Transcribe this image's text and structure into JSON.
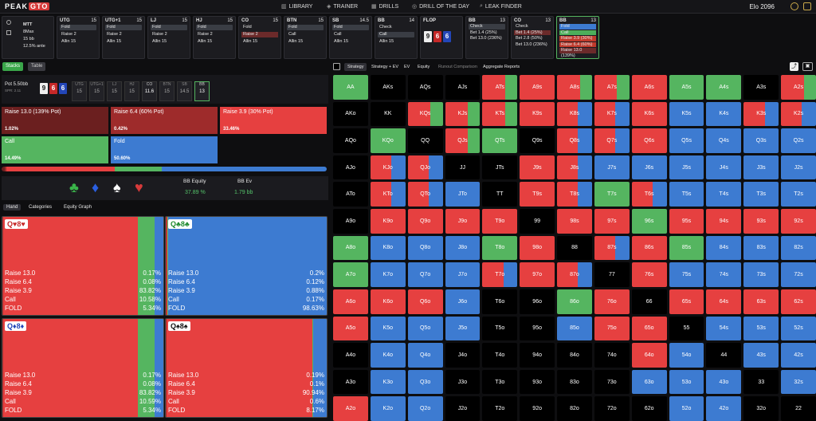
{
  "app": {
    "logo_a": "PEAK",
    "logo_b": "GTO",
    "elo": "Elo 2096"
  },
  "nav": [
    {
      "icon": "▥",
      "label": "LIBRARY"
    },
    {
      "icon": "◈",
      "label": "TRAINER"
    },
    {
      "icon": "▦",
      "label": "DRILLS"
    },
    {
      "icon": "◎",
      "label": "DRILL OF THE DAY"
    },
    {
      "icon": "⌕",
      "label": "LEAK FINDER"
    }
  ],
  "game": {
    "format": "MTT",
    "max": "8Max",
    "stack": "15 bb",
    "ante": "12.5% ante"
  },
  "positions": [
    {
      "pos": "UTG",
      "bb": "15",
      "lines": [
        "Fold",
        "Raise 2",
        "Allin 15"
      ],
      "hl": 0
    },
    {
      "pos": "UTG+1",
      "bb": "15",
      "lines": [
        "Fold",
        "Raise 2",
        "Allin 15"
      ],
      "hl": 0
    },
    {
      "pos": "LJ",
      "bb": "15",
      "lines": [
        "Fold",
        "Raise 2",
        "Allin 15"
      ],
      "hl": 0
    },
    {
      "pos": "HJ",
      "bb": "15",
      "lines": [
        "Fold",
        "Raise 2",
        "Allin 15"
      ],
      "hl": 0
    },
    {
      "pos": "CO",
      "bb": "15",
      "lines": [
        "Fold",
        "Raise 2",
        "Allin 15"
      ],
      "hl": 1
    },
    {
      "pos": "BTN",
      "bb": "15",
      "lines": [
        "Fold",
        "Call",
        "Allin 15"
      ],
      "hl": 0
    },
    {
      "pos": "SB",
      "bb": "14.5",
      "lines": [
        "Fold",
        "Call",
        "Allin 15"
      ],
      "hl": 0
    },
    {
      "pos": "BB",
      "bb": "14",
      "lines": [
        "Check",
        "Call",
        "Allin 15"
      ],
      "hl": 1
    }
  ],
  "flop": {
    "label": "FLOP",
    "cards": [
      "9",
      "6",
      "6"
    ]
  },
  "postflop": [
    {
      "pos": "BB",
      "bb": "13",
      "lines": [
        "Check",
        "Bet 1.4 (25%)",
        "Bet 13.0 (236%)"
      ]
    },
    {
      "pos": "CO",
      "bb": "13",
      "lines": [
        "Check",
        "Bet 1.4 (25%)",
        "Bet 2.8 (50%)",
        "Bet 13.0 (236%)"
      ]
    },
    {
      "pos": "BB",
      "bb": "13",
      "lines": [
        "Fold",
        "Call",
        "Raise 3.9 (30%)",
        "Raise 6.4 (60%)",
        "Raise 13.0 (139%)"
      ]
    }
  ],
  "left": {
    "tabs": [
      "Stacks",
      "Table"
    ],
    "pot": "Pot 5.50bb",
    "spr": "SPR: 2.11",
    "board": [
      "9",
      "6",
      "6"
    ],
    "stacks": [
      {
        "p": "UTG",
        "v": "15"
      },
      {
        "p": "UTG+1",
        "v": "15"
      },
      {
        "p": "LJ",
        "v": "15"
      },
      {
        "p": "HJ",
        "v": "15"
      },
      {
        "p": "CO",
        "v": "11.6"
      },
      {
        "p": "BTN",
        "v": "15"
      },
      {
        "p": "SB",
        "v": "14.5"
      },
      {
        "p": "BB",
        "v": "13"
      }
    ],
    "actions": [
      {
        "label": "Raise 13.0 (139% Pot)",
        "pct": "1.02%"
      },
      {
        "label": "Raise 6.4 (60% Pot)",
        "pct": "0.42%"
      },
      {
        "label": "Raise 3.9 (30% Pot)",
        "pct": "33.46%"
      },
      {
        "label": "Call",
        "pct": "14.49%"
      },
      {
        "label": "Fold",
        "pct": "50.60%"
      }
    ],
    "mix": [
      0.0102,
      0.0042,
      0.3346,
      0.1449,
      0.506
    ],
    "equity_label": "BB Equity",
    "equity": "37.89 %",
    "ev_label": "BB Ev",
    "ev": "1.79 bb",
    "hand_tabs": [
      "Hand",
      "Categories",
      "Equity Graph"
    ],
    "hands": [
      {
        "combo": "Q♥8♥",
        "rows": [
          [
            "Raise 13.0",
            "0.17%"
          ],
          [
            "Raise 6.4",
            "0.08%"
          ],
          [
            "Raise 3.9",
            "83.82%"
          ],
          [
            "Call",
            "10.58%"
          ],
          [
            "FOLD",
            "5.34%"
          ]
        ],
        "mix": [
          0.0017,
          0.0008,
          0.8382,
          0.1058,
          0.0534
        ]
      },
      {
        "combo": "Q♣8♣",
        "rows": [
          [
            "Raise 13.0",
            "0.2%"
          ],
          [
            "Raise 6.4",
            "0.12%"
          ],
          [
            "Raise 3.9",
            "0.88%"
          ],
          [
            "Call",
            "0.17%"
          ],
          [
            "FOLD",
            "98.63%"
          ]
        ],
        "mix": [
          0.002,
          0.0012,
          0.0088,
          0.0017,
          0.9863
        ]
      },
      {
        "combo": "Q♦8♦",
        "rows": [
          [
            "Raise 13.0",
            "0.17%"
          ],
          [
            "Raise 6.4",
            "0.08%"
          ],
          [
            "Raise 3.9",
            "83.82%"
          ],
          [
            "Call",
            "10.59%"
          ],
          [
            "FOLD",
            "5.34%"
          ]
        ],
        "mix": [
          0.0017,
          0.0008,
          0.8382,
          0.1059,
          0.0534
        ]
      },
      {
        "combo": "Q♠8♠",
        "rows": [
          [
            "Raise 13.0",
            "0.19%"
          ],
          [
            "Raise 6.4",
            "0.1%"
          ],
          [
            "Raise 3.9",
            "90.94%"
          ],
          [
            "Call",
            "0.6%"
          ],
          [
            "FOLD",
            "8.17%"
          ]
        ],
        "mix": [
          0.0019,
          0.001,
          0.9094,
          0.006,
          0.0817
        ]
      }
    ]
  },
  "right": {
    "tabs": [
      "Strategy",
      "Strategy + EV",
      "EV",
      "Equity",
      "Runout Comparison",
      "Aggregate Reports"
    ]
  },
  "colors": {
    "raise_big": "#6b1f1f",
    "raise_mid": "#9e2b2b",
    "raise": "#e64040",
    "call": "#55b560",
    "fold": "#3d7bd1"
  },
  "grid": {
    "ranks": [
      "A",
      "K",
      "Q",
      "J",
      "T",
      "9",
      "8",
      "7",
      "6",
      "5",
      "4",
      "3",
      "2"
    ],
    "cells": {
      "AA": "g",
      "AKs": "x",
      "AQs": "x",
      "AJs": "x",
      "ATs": "rg",
      "A9s": "r",
      "A8s": "rg",
      "A7s": "rg",
      "A6s": "r",
      "A5s": "g",
      "A4s": "g",
      "A3s": "x",
      "A2s": "rg",
      "AKo": "x",
      "KK": "x",
      "KQs": "rg",
      "KJs": "rg",
      "KTs": "rg",
      "K9s": "r",
      "K8s": "rb",
      "K7s": "rb",
      "K6s": "r",
      "K5s": "b",
      "K4s": "b",
      "K3s": "rb",
      "K2s": "rb",
      "AQo": "x",
      "KQo": "g",
      "QQ": "x",
      "QJs": "rg",
      "QTs": "g",
      "Q9s": "x",
      "Q8s": "rb",
      "Q7s": "rb",
      "Q6s": "r",
      "Q5s": "b",
      "Q4s": "b",
      "Q3s": "b",
      "Q2s": "b",
      "AJo": "x",
      "KJo": "rb",
      "QJo": "rb",
      "JJ": "x",
      "JTs": "x",
      "J9s": "r",
      "J8s": "rb",
      "J7s": "b",
      "J6s": "b",
      "J5s": "b",
      "J4s": "b",
      "J3s": "b",
      "J2s": "b",
      "ATo": "x",
      "KTo": "rb",
      "QTo": "rb",
      "JTo": "b",
      "TT": "x",
      "T9s": "r",
      "T8s": "rb",
      "T7s": "g",
      "T6s": "rb",
      "T5s": "b",
      "T4s": "b",
      "T3s": "b",
      "T2s": "b",
      "A9o": "x",
      "K9o": "r",
      "Q9o": "r",
      "J9o": "r",
      "T9o": "r",
      "99": "x",
      "98s": "r",
      "97s": "r",
      "96s": "g",
      "95s": "r",
      "94s": "r",
      "93s": "r",
      "92s": "r",
      "A8o": "g",
      "K8o": "b",
      "Q8o": "b",
      "J8o": "b",
      "T8o": "g",
      "98o": "r",
      "88": "x",
      "87s": "rb",
      "86s": "r",
      "85s": "g",
      "84s": "b",
      "83s": "b",
      "82s": "b",
      "A7o": "g",
      "K7o": "b",
      "Q7o": "b",
      "J7o": "b",
      "T7o": "rb",
      "97o": "r",
      "87o": "rb",
      "77": "x",
      "76s": "r",
      "75s": "b",
      "74s": "b",
      "73s": "b",
      "72s": "b",
      "A6o": "r",
      "K6o": "r",
      "Q6o": "r",
      "J6o": "b",
      "T6o": "x",
      "96o": "x",
      "86o": "g",
      "76o": "r",
      "66": "x",
      "65s": "r",
      "64s": "r",
      "63s": "r",
      "62s": "r",
      "A5o": "r",
      "K5o": "b",
      "Q5o": "b",
      "J5o": "b",
      "T5o": "x",
      "95o": "x",
      "85o": "b",
      "75o": "r",
      "65o": "r",
      "55": "x",
      "54s": "b",
      "53s": "b",
      "52s": "b",
      "A4o": "x",
      "K4o": "b",
      "Q4o": "b",
      "J4o": "x",
      "T4o": "x",
      "94o": "x",
      "84o": "x",
      "74o": "x",
      "64o": "r",
      "54o": "b",
      "44": "x",
      "43s": "b",
      "42s": "b",
      "A3o": "x",
      "K3o": "b",
      "Q3o": "b",
      "J3o": "x",
      "T3o": "x",
      "93o": "x",
      "83o": "x",
      "73o": "x",
      "63o": "b",
      "53o": "b",
      "43o": "b",
      "33": "x",
      "32s": "b",
      "A2o": "r",
      "K2o": "b",
      "Q2o": "b",
      "J2o": "x",
      "T2o": "x",
      "92o": "x",
      "82o": "x",
      "72o": "x",
      "62o": "x",
      "52o": "b",
      "42o": "b",
      "32o": "x",
      "22": "x"
    }
  }
}
